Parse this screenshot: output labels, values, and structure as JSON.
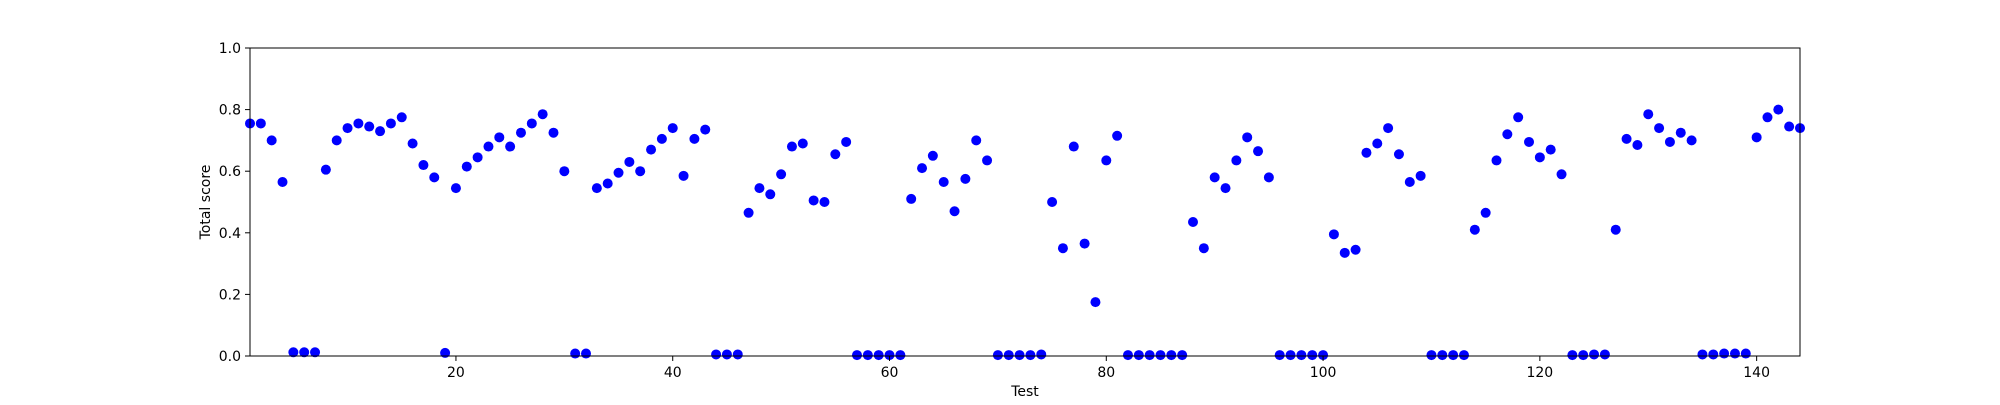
{
  "chart_data": {
    "type": "scatter",
    "xlabel": "Test",
    "ylabel": "Total score",
    "xlim": [
      1,
      144
    ],
    "ylim": [
      0.0,
      1.0
    ],
    "x_ticks": [
      {
        "value": 20,
        "label": "20"
      },
      {
        "value": 40,
        "label": "40"
      },
      {
        "value": 60,
        "label": "60"
      },
      {
        "value": 80,
        "label": "80"
      },
      {
        "value": 100,
        "label": "100"
      },
      {
        "value": 120,
        "label": "120"
      },
      {
        "value": 140,
        "label": "140"
      }
    ],
    "y_ticks": [
      {
        "value": 0.0,
        "label": "0.0"
      },
      {
        "value": 0.2,
        "label": "0.2"
      },
      {
        "value": 0.4,
        "label": "0.4"
      },
      {
        "value": 0.6,
        "label": "0.6"
      },
      {
        "value": 0.8,
        "label": "0.8"
      },
      {
        "value": 1.0,
        "label": "1.0"
      }
    ],
    "grid": false,
    "marker_color": "#0000ff",
    "x": [
      1,
      2,
      3,
      4,
      5,
      6,
      7,
      8,
      9,
      10,
      11,
      12,
      13,
      14,
      15,
      16,
      17,
      18,
      19,
      20,
      21,
      22,
      23,
      24,
      25,
      26,
      27,
      28,
      29,
      30,
      31,
      32,
      33,
      34,
      35,
      36,
      37,
      38,
      39,
      40,
      41,
      42,
      43,
      44,
      45,
      46,
      47,
      48,
      49,
      50,
      51,
      52,
      53,
      54,
      55,
      56,
      57,
      58,
      59,
      60,
      61,
      62,
      63,
      64,
      65,
      66,
      67,
      68,
      69,
      70,
      71,
      72,
      73,
      74,
      75,
      76,
      77,
      78,
      79,
      80,
      81,
      82,
      83,
      84,
      85,
      86,
      87,
      88,
      89,
      90,
      91,
      92,
      93,
      94,
      95,
      96,
      97,
      98,
      99,
      100,
      101,
      102,
      103,
      104,
      105,
      106,
      107,
      108,
      109,
      110,
      111,
      112,
      113,
      114,
      115,
      116,
      117,
      118,
      119,
      120,
      121,
      122,
      123,
      124,
      125,
      126,
      127,
      128,
      129,
      130,
      131,
      132,
      133,
      134,
      135,
      136,
      137,
      138,
      139,
      140,
      141,
      142,
      143,
      144
    ],
    "y": [
      0.755,
      0.755,
      0.7,
      0.565,
      0.012,
      0.012,
      0.012,
      0.605,
      0.7,
      0.74,
      0.755,
      0.745,
      0.73,
      0.755,
      0.775,
      0.69,
      0.62,
      0.58,
      0.01,
      0.545,
      0.615,
      0.645,
      0.68,
      0.71,
      0.68,
      0.725,
      0.755,
      0.785,
      0.725,
      0.6,
      0.008,
      0.008,
      0.545,
      0.56,
      0.595,
      0.63,
      0.6,
      0.67,
      0.705,
      0.74,
      0.585,
      0.705,
      0.735,
      0.005,
      0.005,
      0.005,
      0.465,
      0.545,
      0.525,
      0.59,
      0.68,
      0.69,
      0.505,
      0.5,
      0.655,
      0.695,
      0.003,
      0.003,
      0.003,
      0.003,
      0.003,
      0.51,
      0.61,
      0.65,
      0.565,
      0.47,
      0.575,
      0.7,
      0.635,
      0.003,
      0.003,
      0.003,
      0.003,
      0.005,
      0.5,
      0.35,
      0.68,
      0.365,
      0.175,
      0.635,
      0.715,
      0.003,
      0.003,
      0.003,
      0.003,
      0.003,
      0.003,
      0.435,
      0.35,
      0.58,
      0.545,
      0.635,
      0.71,
      0.665,
      0.58,
      0.003,
      0.003,
      0.003,
      0.003,
      0.003,
      0.395,
      0.335,
      0.345,
      0.66,
      0.69,
      0.74,
      0.655,
      0.565,
      0.585,
      0.003,
      0.003,
      0.003,
      0.003,
      0.41,
      0.465,
      0.635,
      0.72,
      0.775,
      0.695,
      0.645,
      0.67,
      0.59,
      0.003,
      0.003,
      0.005,
      0.005,
      0.41,
      0.705,
      0.685,
      0.785,
      0.74,
      0.695,
      0.725,
      0.7,
      0.005,
      0.005,
      0.008,
      0.008,
      0.008,
      0.71,
      0.775,
      0.8,
      0.745,
      0.74
    ]
  }
}
